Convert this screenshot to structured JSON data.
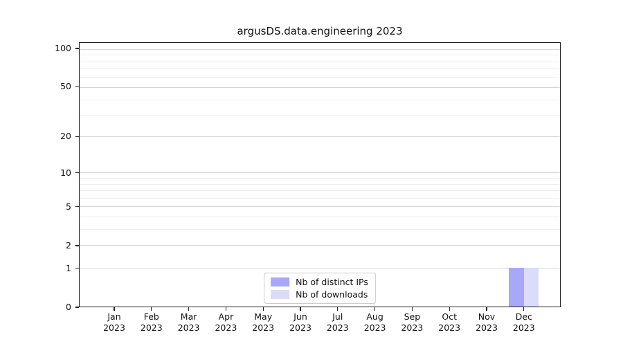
{
  "chart_data": {
    "type": "bar",
    "title": "argusDS.data.engineering 2023",
    "categories": [
      "Jan 2023",
      "Feb 2023",
      "Mar 2023",
      "Apr 2023",
      "May 2023",
      "Jun 2023",
      "Jul 2023",
      "Aug 2023",
      "Sep 2023",
      "Oct 2023",
      "Nov 2023",
      "Dec 2023"
    ],
    "x_tick_months": [
      "Jan",
      "Feb",
      "Mar",
      "Apr",
      "May",
      "Jun",
      "Jul",
      "Aug",
      "Sep",
      "Oct",
      "Nov",
      "Dec"
    ],
    "x_tick_year": "2023",
    "series": [
      {
        "name": "Nb of distinct IPs",
        "color": "#a8a8f9",
        "values": [
          0,
          0,
          0,
          0,
          0,
          0,
          0,
          0,
          0,
          0,
          0,
          1
        ]
      },
      {
        "name": "Nb of downloads",
        "color": "#dbdbfa",
        "values": [
          0,
          0,
          0,
          0,
          0,
          0,
          0,
          0,
          0,
          0,
          0,
          1
        ]
      }
    ],
    "yscale": "log1p",
    "ylim": [
      0,
      112
    ],
    "yticks": [
      0,
      1,
      2,
      5,
      10,
      20,
      50,
      100
    ],
    "yticks_minor": [
      3,
      4,
      6,
      7,
      8,
      9,
      30,
      40,
      60,
      70,
      80,
      90
    ],
    "grid": "horizontal",
    "legend_position": "lower center",
    "xlabel": "",
    "ylabel": ""
  }
}
